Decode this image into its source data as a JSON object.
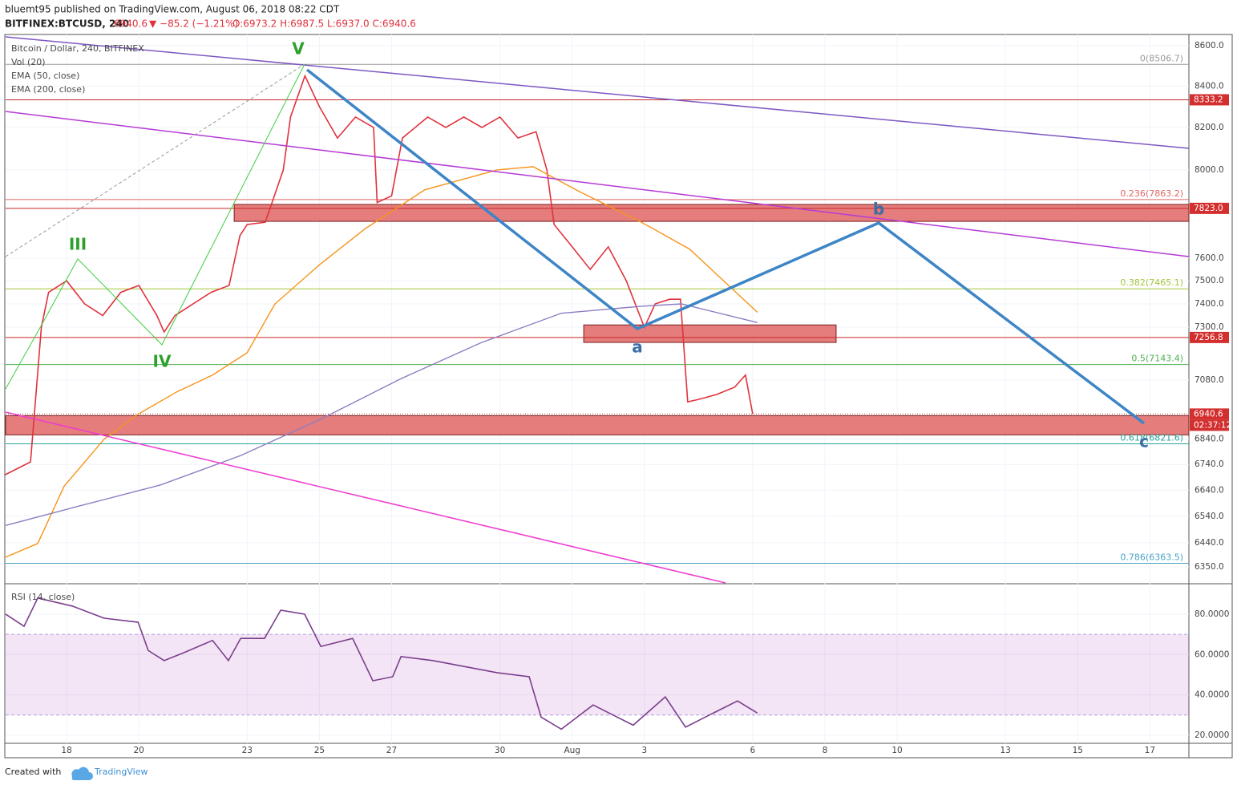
{
  "header": {
    "published": "bluemt95 published on TradingView.com, August 06, 2018 08:22 CDT",
    "symbol": "BITFINEX:BTCUSD, 240",
    "last": "6940.6",
    "change": "▼ −85.2 (−1.21%)",
    "ohlc": "O:6973.2 H:6987.5 L:6937.0 C:6940.6",
    "legend": [
      "Bitcoin / Dollar, 240, BITFINEX",
      "Vol (20)",
      "EMA (50, close)",
      "EMA (200, close)"
    ]
  },
  "footer": {
    "created": "Created with",
    "brand": "TradingView"
  },
  "chart_data": [
    {
      "type": "line",
      "log_scale": true,
      "xlim": [
        16.31,
        49.08
      ],
      "ylim": [
        6291,
        8656
      ],
      "xticks": [
        18,
        20,
        {
          "value": 23,
          "label": "23"
        },
        25,
        27,
        30,
        {
          "value": 32,
          "label": "Aug"
        },
        {
          "value": 34,
          "label": "3"
        },
        {
          "value": 37,
          "label": "6"
        },
        {
          "value": 39,
          "label": "8"
        },
        {
          "value": 41,
          "label": "10"
        },
        {
          "value": 44,
          "label": "13"
        },
        {
          "value": 46,
          "label": "15"
        },
        {
          "value": 48,
          "label": "17"
        }
      ],
      "yticks": [
        {
          "value": 8600,
          "label": "8600.0"
        },
        {
          "value": 8400,
          "label": "8400.0"
        },
        {
          "value": 8200,
          "label": "8200.0"
        },
        {
          "value": 8000,
          "label": "8000.0"
        },
        {
          "value": 7600,
          "label": "7600.0"
        },
        {
          "value": 7500,
          "label": "7500.0"
        },
        {
          "value": 7400,
          "label": "7400.0"
        },
        {
          "value": 7300,
          "label": "7300.0"
        },
        {
          "value": 7080,
          "label": "7080.0"
        },
        {
          "value": 6840,
          "label": "6840.0"
        },
        {
          "value": 6740,
          "label": "6740.0"
        },
        {
          "value": 6640,
          "label": "6640.0"
        },
        {
          "value": 6540,
          "label": "6540.0"
        },
        {
          "value": 6440,
          "label": "6440.0"
        },
        {
          "value": 6350,
          "label": "6350.0"
        }
      ],
      "series": [
        {
          "name": "Bitcoin / Dollar, 240, BITFINEX",
          "color": "#e0323c",
          "x": [
            16.3,
            17,
            17.3,
            17.5,
            18,
            18.5,
            19,
            19.5,
            20,
            20.5,
            20.7,
            21,
            21.5,
            22,
            22.5,
            22.8,
            23,
            23.5,
            24,
            24.2,
            24.6,
            25,
            25.5,
            26,
            26.5,
            26.6,
            27,
            27.3,
            28,
            28.5,
            29,
            29.5,
            30,
            30.5,
            31,
            31.3,
            31.5,
            32,
            32.5,
            33,
            33.5,
            34,
            34.3,
            34.7,
            35,
            35.2,
            35.5,
            36,
            36.5,
            36.8,
            37
          ],
          "values": [
            6700,
            6750,
            7300,
            7450,
            7500,
            7400,
            7350,
            7450,
            7480,
            7350,
            7280,
            7350,
            7400,
            7450,
            7480,
            7700,
            7750,
            7760,
            8000,
            8250,
            8450,
            8300,
            8150,
            8250,
            8200,
            7850,
            7880,
            8150,
            8250,
            8200,
            8250,
            8200,
            8250,
            8150,
            8180,
            8000,
            7750,
            7650,
            7550,
            7650,
            7500,
            7300,
            7400,
            7420,
            7420,
            6990,
            7000,
            7020,
            7050,
            7100,
            6940.6
          ]
        },
        {
          "name": "EMA (50, close)",
          "color": "#f7931a",
          "x": [
            16.31,
            17.2,
            17.93,
            19.04,
            19.98,
            21.04,
            22.04,
            23.0,
            23.77,
            25,
            26.26,
            27.92,
            29.92,
            30.92,
            32.14,
            33.92,
            35.25,
            37.13
          ],
          "values": [
            6386,
            6437,
            6655,
            6840,
            6940,
            7030,
            7100,
            7193,
            7400,
            7570,
            7730,
            7908,
            8000,
            8015,
            7905,
            7760,
            7640,
            7364
          ]
        },
        {
          "name": "EMA (200, close)",
          "color": "#8e7cc3",
          "x": [
            16.31,
            18.38,
            20.6,
            22.82,
            25.04,
            27.26,
            29.48,
            31.7,
            33.92,
            35.03,
            37.13
          ],
          "values": [
            6505,
            6580,
            6660,
            6775,
            6920,
            7085,
            7235,
            7360,
            7390,
            7400,
            7320
          ]
        }
      ],
      "fib_levels": [
        {
          "value": 8506.7,
          "label": "0(8506.7)"
        },
        {
          "value": 7863.2,
          "label": "0.236(7863.2)"
        },
        {
          "value": 7465.1,
          "label": "0.382(7465.1)"
        },
        {
          "value": 7143.4,
          "label": "0.5(7143.4)"
        },
        {
          "value": 6821.6,
          "label": "0.618(6821.6)"
        },
        {
          "value": 6363.5,
          "label": "0.786(6363.5)"
        }
      ],
      "price_tags": [
        8333.2,
        {
          "value": 7823.0,
          "label": "7823.0"
        },
        {
          "value": 7256.8,
          "label": "7256.8"
        },
        6940.6
      ],
      "countdown": "02:37:12",
      "zones": [
        {
          "x": [
            22.64,
            49.08
          ],
          "y": [
            7764,
            7841
          ]
        },
        {
          "x": [
            32.32,
            39.31
          ],
          "y": [
            7236,
            7310
          ]
        },
        {
          "x": [
            16.31,
            49.08
          ],
          "y": [
            6857,
            6934
          ]
        }
      ],
      "wave_labels": [
        "V",
        "III",
        "IV",
        "a",
        "b",
        "c"
      ]
    },
    {
      "type": "line",
      "title": "RSI (14, close)",
      "ylim": [
        16.0,
        94.3
      ],
      "yticks": [
        {
          "value": 80,
          "label": "80.0000"
        },
        {
          "value": 60,
          "label": "60.0000"
        },
        {
          "value": 40,
          "label": "40.0000"
        },
        {
          "value": 20,
          "label": "20.0000"
        }
      ],
      "band": [
        30,
        70
      ],
      "series": [
        {
          "name": "RSI (14, close)",
          "color": "#7b3f8c",
          "x": [
            16.31,
            16.82,
            17.2,
            18.16,
            19.04,
            19.98,
            20.26,
            20.7,
            21.26,
            22.04,
            22.48,
            22.82,
            23.48,
            23.93,
            24.59,
            25.04,
            25.92,
            26.48,
            27.03,
            27.26,
            28.14,
            29.92,
            30.81,
            31.14,
            31.7,
            32.58,
            33.69,
            34.58,
            35.14,
            35.91,
            36.58,
            37.13
          ],
          "values": [
            80,
            74,
            88,
            84,
            78,
            76,
            62,
            57,
            61,
            67,
            57,
            68,
            68,
            82,
            80,
            64,
            68,
            47,
            49,
            59,
            57,
            51,
            49,
            29,
            23,
            35,
            25,
            39,
            24,
            31,
            37,
            31
          ]
        }
      ]
    }
  ]
}
